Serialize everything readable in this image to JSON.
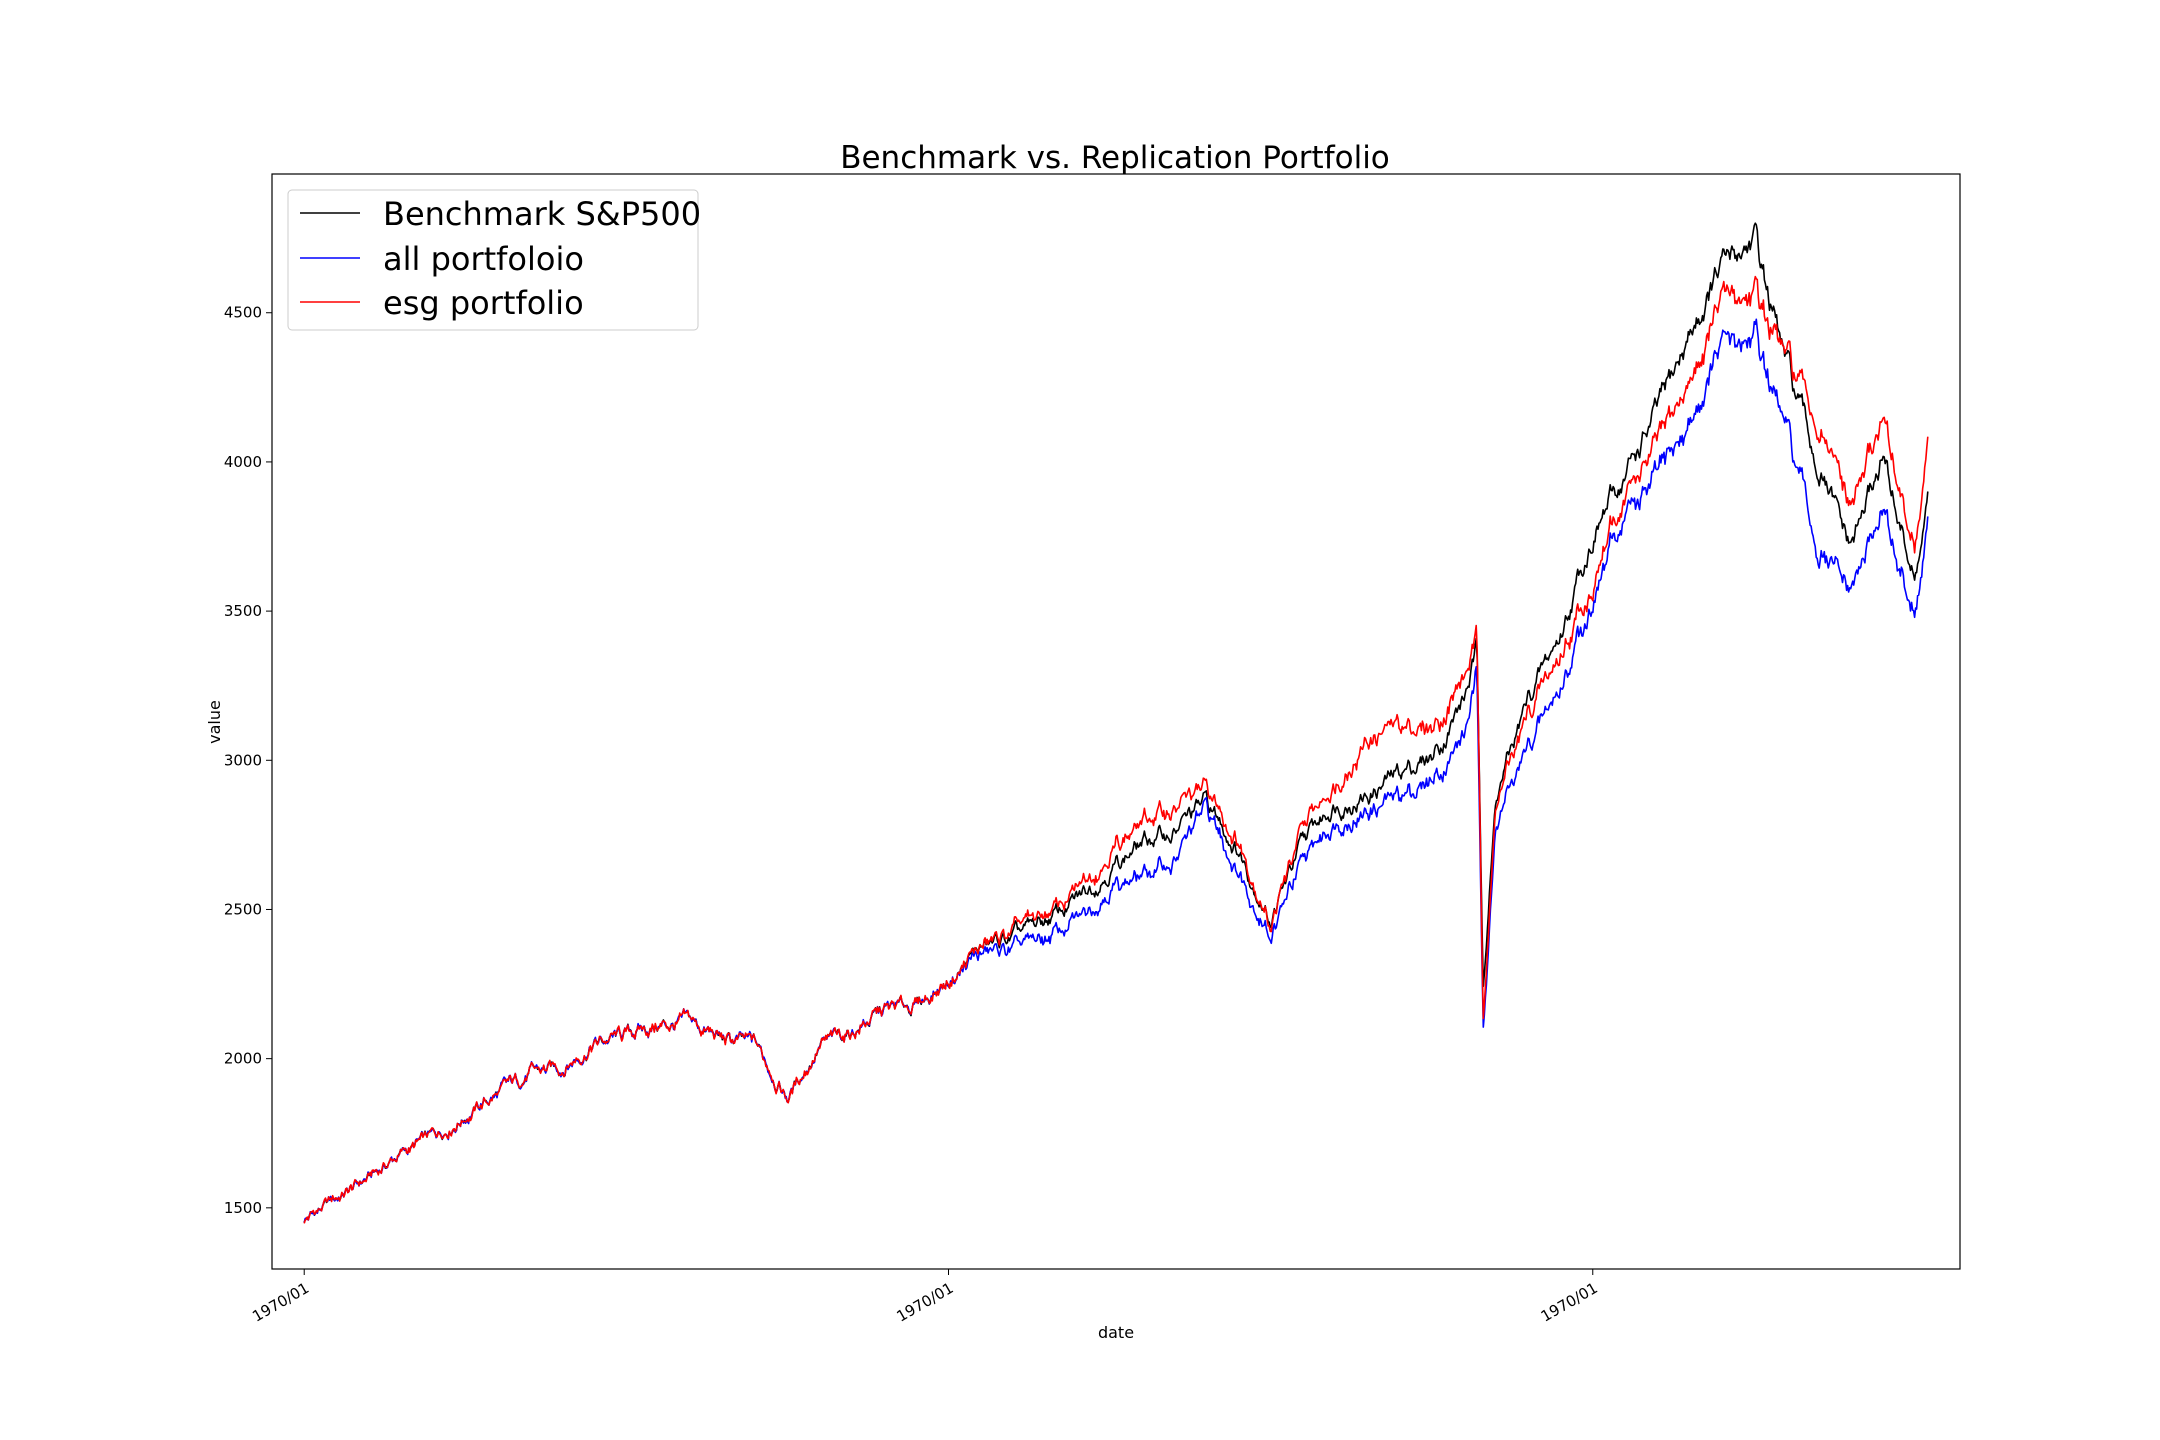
{
  "chart_data": {
    "type": "line",
    "title": "Benchmark vs. Replication Portfolio",
    "xlabel": "date",
    "ylabel": "value",
    "x_tick_labels": [
      "1970/01",
      "1970/01",
      "1970/01"
    ],
    "y_ticks": [
      1500,
      2000,
      2500,
      3000,
      3500,
      4000,
      4500
    ],
    "ylim": [
      1295,
      4965
    ],
    "xlim": [
      -0.05,
      2.57
    ],
    "grid": false,
    "legend_position": "upper-left",
    "x_samples": [
      0,
      0.05,
      0.1,
      0.15,
      0.2,
      0.25,
      0.3,
      0.35,
      0.4,
      0.45,
      0.5,
      0.55,
      0.6,
      0.65,
      0.7,
      0.75,
      0.8,
      0.85,
      0.9,
      0.95,
      1.0,
      1.05,
      1.1,
      1.15,
      1.2,
      1.25,
      1.3,
      1.35,
      1.4,
      1.45,
      1.5,
      1.55,
      1.6,
      1.65,
      1.7,
      1.75,
      1.8,
      1.82,
      1.83,
      1.85,
      1.9,
      1.95,
      2.0,
      2.05,
      2.1,
      2.15,
      2.2,
      2.25,
      2.3,
      2.35,
      2.4,
      2.45,
      2.5,
      2.52
    ],
    "series": [
      {
        "name": "Benchmark S&P500",
        "color": "#000000",
        "values": [
          1460,
          1530,
          1600,
          1680,
          1740,
          1810,
          1880,
          1950,
          1970,
          2050,
          2080,
          2110,
          2120,
          2060,
          2050,
          1870,
          2040,
          2090,
          2160,
          2180,
          2260,
          2370,
          2400,
          2460,
          2530,
          2640,
          2720,
          2760,
          2860,
          2700,
          2470,
          2720,
          2860,
          2880,
          2960,
          3010,
          3200,
          3360,
          2270,
          2880,
          3200,
          3420,
          3760,
          3950,
          4160,
          4420,
          4640,
          4750,
          4320,
          3980,
          3700,
          4020,
          3600,
          3850
        ]
      },
      {
        "name": "all portfoloio",
        "color": "#0000ff",
        "values": [
          1460,
          1530,
          1600,
          1680,
          1740,
          1810,
          1880,
          1950,
          1970,
          2050,
          2080,
          2110,
          2120,
          2060,
          2050,
          1870,
          2040,
          2090,
          2160,
          2180,
          2260,
          2350,
          2360,
          2400,
          2460,
          2580,
          2610,
          2660,
          2840,
          2630,
          2420,
          2650,
          2800,
          2830,
          2880,
          2930,
          3080,
          3270,
          2130,
          2790,
          3040,
          3240,
          3550,
          3820,
          3940,
          4120,
          4380,
          4420,
          4100,
          3700,
          3550,
          3840,
          3480,
          3760
        ]
      },
      {
        "name": "esg portfolio",
        "color": "#ff0000",
        "values": [
          1460,
          1530,
          1600,
          1680,
          1740,
          1810,
          1880,
          1950,
          1970,
          2050,
          2080,
          2110,
          2120,
          2060,
          2050,
          1870,
          2040,
          2090,
          2160,
          2180,
          2260,
          2370,
          2420,
          2480,
          2560,
          2700,
          2790,
          2840,
          2900,
          2730,
          2460,
          2760,
          2930,
          3070,
          3120,
          3100,
          3270,
          3400,
          2160,
          2860,
          3150,
          3350,
          3600,
          3880,
          4050,
          4260,
          4530,
          4560,
          4340,
          4120,
          3830,
          4150,
          3700,
          4030
        ]
      }
    ]
  }
}
